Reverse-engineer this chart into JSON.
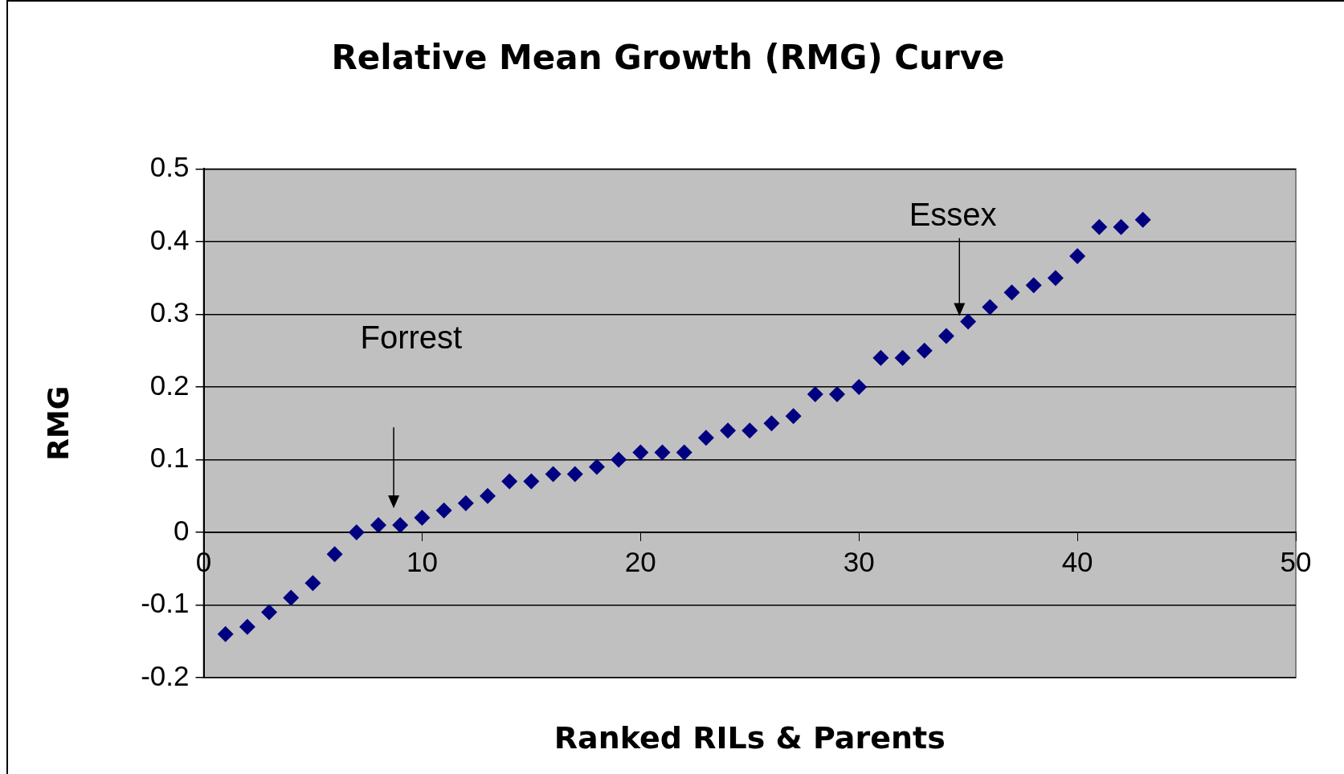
{
  "chart_data": {
    "type": "scatter",
    "title": "Relative Mean Growth (RMG) Curve",
    "xlabel": "Ranked RILs & Parents",
    "ylabel": "RMG",
    "x": [
      1,
      2,
      3,
      4,
      5,
      6,
      7,
      8,
      9,
      10,
      11,
      12,
      13,
      14,
      15,
      16,
      17,
      18,
      19,
      20,
      21,
      22,
      23,
      24,
      25,
      26,
      27,
      28,
      29,
      30,
      31,
      32,
      33,
      34,
      35,
      36,
      37,
      38,
      39,
      40,
      41,
      42,
      43
    ],
    "series": [
      {
        "color": "#000080",
        "values": [
          -0.14,
          -0.13,
          -0.11,
          -0.09,
          -0.07,
          -0.03,
          0,
          0.01,
          0.01,
          0.02,
          0.03,
          0.04,
          0.05,
          0.07,
          0.07,
          0.08,
          0.08,
          0.09,
          0.1,
          0.11,
          0.11,
          0.11,
          0.13,
          0.14,
          0.14,
          0.15,
          0.16,
          0.19,
          0.19,
          0.2,
          0.24,
          0.24,
          0.25,
          0.27,
          0.29,
          0.31,
          0.33,
          0.34,
          0.35,
          0.38,
          0.42,
          0.42,
          0.43
        ]
      }
    ],
    "xlim": [
      0,
      50
    ],
    "xticks": [
      0,
      10,
      20,
      30,
      40,
      50
    ],
    "ylim": [
      -0.2,
      0.5
    ],
    "yticks": [
      {
        "value": -0.2,
        "label": "-0.2"
      },
      {
        "value": -0.1,
        "label": "-0.1"
      },
      0,
      {
        "value": 0.1,
        "label": "0.1"
      },
      {
        "value": 0.2,
        "label": "0.2"
      },
      {
        "value": 0.3,
        "label": "0.3"
      },
      {
        "value": 0.4,
        "label": "0.4"
      },
      {
        "value": 0.5,
        "label": "0.5"
      }
    ],
    "grid": "y",
    "legend": false,
    "marker": "diamond",
    "annotations": [
      "Forrest",
      "Essex"
    ]
  }
}
